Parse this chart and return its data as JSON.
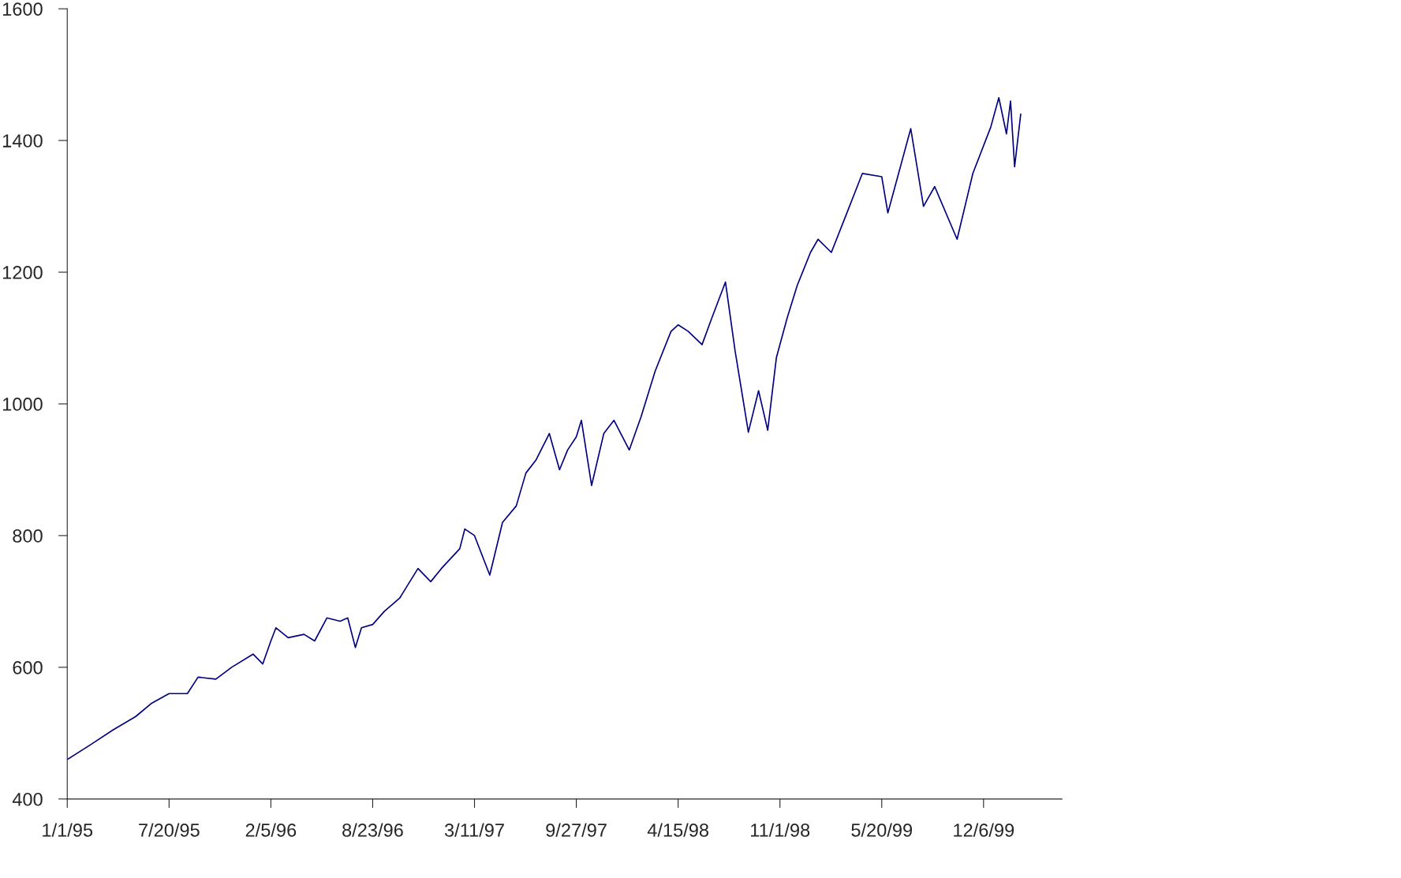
{
  "chart_data": {
    "type": "line",
    "color": "#000080",
    "x": [
      "1995-01-01",
      "1995-02-15",
      "1995-04-01",
      "1995-05-15",
      "1995-06-15",
      "1995-07-20",
      "1995-08-25",
      "1995-09-15",
      "1995-10-20",
      "1995-11-20",
      "1996-01-01",
      "1996-01-20",
      "1996-02-05",
      "1996-02-15",
      "1996-03-10",
      "1996-04-10",
      "1996-05-01",
      "1996-05-25",
      "1996-06-20",
      "1996-07-05",
      "1996-07-20",
      "1996-08-01",
      "1996-08-23",
      "1996-09-15",
      "1996-10-15",
      "1996-11-20",
      "1996-12-15",
      "1997-01-05",
      "1997-02-10",
      "1997-02-20",
      "1997-03-11",
      "1997-04-10",
      "1997-05-05",
      "1997-06-01",
      "1997-06-20",
      "1997-07-10",
      "1997-08-05",
      "1997-08-25",
      "1997-09-10",
      "1997-09-27",
      "1997-10-07",
      "1997-10-27",
      "1997-11-20",
      "1997-12-10",
      "1998-01-09",
      "1998-02-01",
      "1998-03-01",
      "1998-04-01",
      "1998-04-15",
      "1998-05-05",
      "1998-06-01",
      "1998-06-20",
      "1998-07-17",
      "1998-08-05",
      "1998-08-31",
      "1998-09-20",
      "1998-10-08",
      "1998-10-25",
      "1998-11-15",
      "1998-12-05",
      "1998-12-31",
      "1999-01-15",
      "1999-02-10",
      "1999-03-10",
      "1999-04-12",
      "1999-05-20",
      "1999-06-01",
      "1999-07-16",
      "1999-08-10",
      "1999-09-01",
      "1999-10-15",
      "1999-11-15",
      "1999-12-20",
      "2000-01-05",
      "2000-01-20",
      "2000-01-28",
      "2000-02-05",
      "2000-02-17"
    ],
    "values": [
      460,
      482,
      505,
      525,
      545,
      560,
      560,
      585,
      582,
      600,
      620,
      605,
      640,
      660,
      645,
      650,
      640,
      675,
      670,
      675,
      630,
      660,
      665,
      685,
      705,
      750,
      730,
      750,
      780,
      810,
      800,
      740,
      820,
      845,
      895,
      915,
      955,
      900,
      930,
      950,
      975,
      876,
      955,
      975,
      930,
      980,
      1050,
      1110,
      1120,
      1110,
      1090,
      1130,
      1185,
      1080,
      957,
      1020,
      960,
      1070,
      1130,
      1180,
      1230,
      1250,
      1230,
      1285,
      1350,
      1345,
      1290,
      1418,
      1300,
      1330,
      1250,
      1350,
      1420,
      1465,
      1410,
      1460,
      1360,
      1440
    ],
    "xlim": [
      "1995-01-01",
      "2000-05-08"
    ],
    "xticks": [
      {
        "value": "1995-01-01",
        "label": "1/1/95"
      },
      {
        "value": "1995-07-20",
        "label": "7/20/95"
      },
      {
        "value": "1996-02-05",
        "label": "2/5/96"
      },
      {
        "value": "1996-08-23",
        "label": "8/23/96"
      },
      {
        "value": "1997-03-11",
        "label": "3/11/97"
      },
      {
        "value": "1997-09-27",
        "label": "9/27/97"
      },
      {
        "value": "1998-04-15",
        "label": "4/15/98"
      },
      {
        "value": "1998-11-01",
        "label": "11/1/98"
      },
      {
        "value": "1999-05-20",
        "label": "5/20/99"
      },
      {
        "value": "1999-12-06",
        "label": "12/6/99"
      }
    ],
    "ylim": [
      400,
      1600
    ],
    "yticks": [
      400,
      600,
      800,
      1000,
      1200,
      1400,
      1600
    ],
    "grid": false,
    "legend": false
  }
}
